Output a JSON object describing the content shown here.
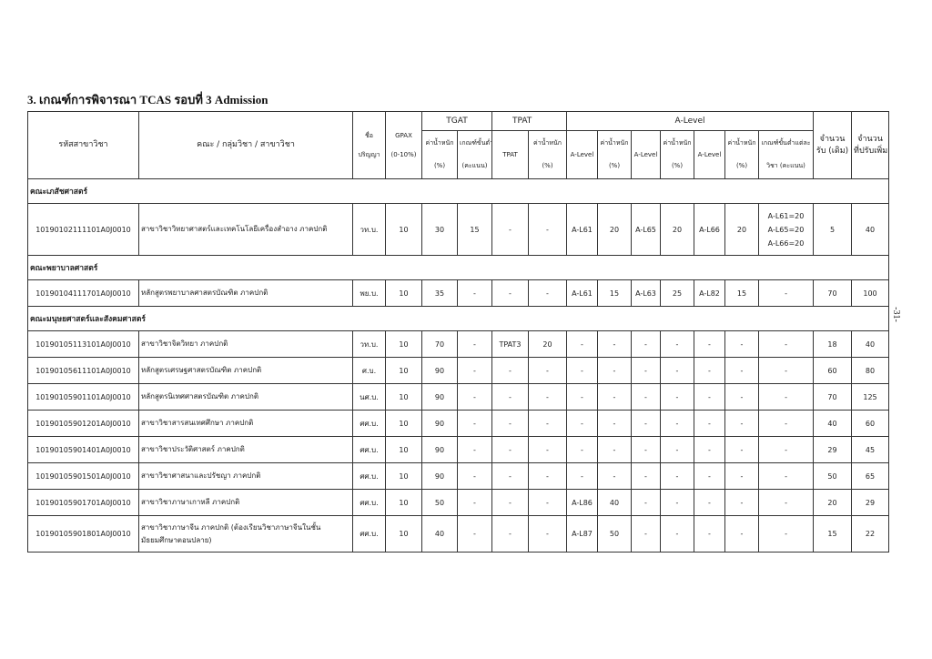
{
  "title": "3. เกณฑ์การพิจารณา  TCAS รอบที่ 3  Admission",
  "page_number": "-31-",
  "header": {
    "code": "รหัสสาขาวิชา",
    "name": "คณะ / กลุ่มวิชา / สาขาวิชา",
    "degree": [
      "ชื่อ",
      "ปริญญา"
    ],
    "gpax": [
      "GPAX",
      "(0-10%)"
    ],
    "tgat": "TGAT",
    "tpat": "TPAT",
    "alevel": "A-Level",
    "tgat_weight": [
      "ค่าน้ำหนัก",
      "(%)"
    ],
    "tgat_min": [
      "เกณฑ์ขั้นต่ำ",
      "(คะแนน)"
    ],
    "tpat_sub": "TPAT",
    "tpat_weight": [
      "ค่าน้ำหนัก",
      "(%)"
    ],
    "al_subject": "A-Level",
    "al_weight": [
      "ค่าน้ำหนัก",
      "(%)"
    ],
    "al_min": [
      "เกณฑ์ขั้นต่ำแต่ละ",
      "วิชา (คะแนน)"
    ],
    "capacity": [
      "จำนวน",
      "รับ (เดิม)"
    ],
    "added": [
      "จำนวน",
      "ที่ปรับเพิ่ม"
    ]
  },
  "sections": [
    {
      "faculty": "คณะเภสัชศาสตร์",
      "rows": [
        {
          "code": "10190102111101A0J0010",
          "name": "สาขาวิชาวิทยาศาสตร์และเทคโนโลยีเครื่องสำอาง ภาคปกติ",
          "degree": "วท.บ.",
          "gpax": "10",
          "tgat_w": "30",
          "tgat_min": "15",
          "tpat": "-",
          "tpat_w": "-",
          "al1": "A-L61",
          "al1_w": "20",
          "al2": "A-L65",
          "al2_w": "20",
          "al3": "A-L66",
          "al3_w": "20",
          "al_min": [
            "A-L61=20",
            "A-L65=20",
            "A-L66=20"
          ],
          "capacity": "5",
          "added": "40"
        }
      ]
    },
    {
      "faculty": "คณะพยาบาลศาสตร์",
      "rows": [
        {
          "code": "10190104111701A0J0010",
          "name": "หลักสูตรพยาบาลศาสตรบัณฑิต ภาคปกติ",
          "degree": "พย.บ.",
          "gpax": "10",
          "tgat_w": "35",
          "tgat_min": "-",
          "tpat": "-",
          "tpat_w": "-",
          "al1": "A-L61",
          "al1_w": "15",
          "al2": "A-L63",
          "al2_w": "25",
          "al3": "A-L82",
          "al3_w": "15",
          "al_min": [
            "-"
          ],
          "capacity": "70",
          "added": "100"
        }
      ]
    },
    {
      "faculty": "คณะมนุษยศาสตร์และสังคมศาสตร์",
      "rows": [
        {
          "code": "10190105113101A0J0010",
          "name": "สาขาวิชาจิตวิทยา ภาคปกติ",
          "degree": "วท.บ.",
          "gpax": "10",
          "tgat_w": "70",
          "tgat_min": "-",
          "tpat": "TPAT3",
          "tpat_w": "20",
          "al1": "-",
          "al1_w": "-",
          "al2": "-",
          "al2_w": "-",
          "al3": "-",
          "al3_w": "-",
          "al_min": [
            "-"
          ],
          "capacity": "18",
          "added": "40"
        },
        {
          "code": "10190105611101A0J0010",
          "name": "หลักสูตรเศรษฐศาสตรบัณฑิต ภาคปกติ",
          "degree": "ศ.บ.",
          "gpax": "10",
          "tgat_w": "90",
          "tgat_min": "-",
          "tpat": "-",
          "tpat_w": "-",
          "al1": "-",
          "al1_w": "-",
          "al2": "-",
          "al2_w": "-",
          "al3": "-",
          "al3_w": "-",
          "al_min": [
            "-"
          ],
          "capacity": "60",
          "added": "80"
        },
        {
          "code": "10190105901101A0J0010",
          "name": "หลักสูตรนิเทศศาสตรบัณฑิต ภาคปกติ",
          "degree": "นศ.บ.",
          "gpax": "10",
          "tgat_w": "90",
          "tgat_min": "-",
          "tpat": "-",
          "tpat_w": "-",
          "al1": "-",
          "al1_w": "-",
          "al2": "-",
          "al2_w": "-",
          "al3": "-",
          "al3_w": "-",
          "al_min": [
            "-"
          ],
          "capacity": "70",
          "added": "125"
        },
        {
          "code": "10190105901201A0J0010",
          "name": "สาขาวิชาสารสนเทศศึกษา ภาคปกติ",
          "degree": "ศศ.บ.",
          "gpax": "10",
          "tgat_w": "90",
          "tgat_min": "-",
          "tpat": "-",
          "tpat_w": "-",
          "al1": "-",
          "al1_w": "-",
          "al2": "-",
          "al2_w": "-",
          "al3": "-",
          "al3_w": "-",
          "al_min": [
            "-"
          ],
          "capacity": "40",
          "added": "60"
        },
        {
          "code": "10190105901401A0J0010",
          "name": "สาขาวิชาประวัติศาสตร์ ภาคปกติ",
          "degree": "ศศ.บ.",
          "gpax": "10",
          "tgat_w": "90",
          "tgat_min": "-",
          "tpat": "-",
          "tpat_w": "-",
          "al1": "-",
          "al1_w": "-",
          "al2": "-",
          "al2_w": "-",
          "al3": "-",
          "al3_w": "-",
          "al_min": [
            "-"
          ],
          "capacity": "29",
          "added": "45"
        },
        {
          "code": "10190105901501A0J0010",
          "name": "สาขาวิชาศาสนาและปรัชญา ภาคปกติ",
          "degree": "ศศ.บ.",
          "gpax": "10",
          "tgat_w": "90",
          "tgat_min": "-",
          "tpat": "-",
          "tpat_w": "-",
          "al1": "-",
          "al1_w": "-",
          "al2": "-",
          "al2_w": "-",
          "al3": "-",
          "al3_w": "-",
          "al_min": [
            "-"
          ],
          "capacity": "50",
          "added": "65"
        },
        {
          "code": "10190105901701A0J0010",
          "name": "สาขาวิชาภาษาเกาหลี ภาคปกติ",
          "degree": "ศศ.บ.",
          "gpax": "10",
          "tgat_w": "50",
          "tgat_min": "-",
          "tpat": "-",
          "tpat_w": "-",
          "al1": "A-L86",
          "al1_w": "40",
          "al2": "-",
          "al2_w": "-",
          "al3": "-",
          "al3_w": "-",
          "al_min": [
            "-"
          ],
          "capacity": "20",
          "added": "29"
        },
        {
          "code": "10190105901801A0J0010",
          "name": "สาขาวิชาภาษาจีน ภาคปกติ (ต้องเรียนวิชาภาษาจีนในชั้นมัธยมศึกษาตอนปลาย)",
          "degree": "ศศ.บ.",
          "gpax": "10",
          "tgat_w": "40",
          "tgat_min": "-",
          "tpat": "-",
          "tpat_w": "-",
          "al1": "A-L87",
          "al1_w": "50",
          "al2": "-",
          "al2_w": "-",
          "al3": "-",
          "al3_w": "-",
          "al_min": [
            "-"
          ],
          "capacity": "15",
          "added": "22"
        }
      ]
    }
  ]
}
